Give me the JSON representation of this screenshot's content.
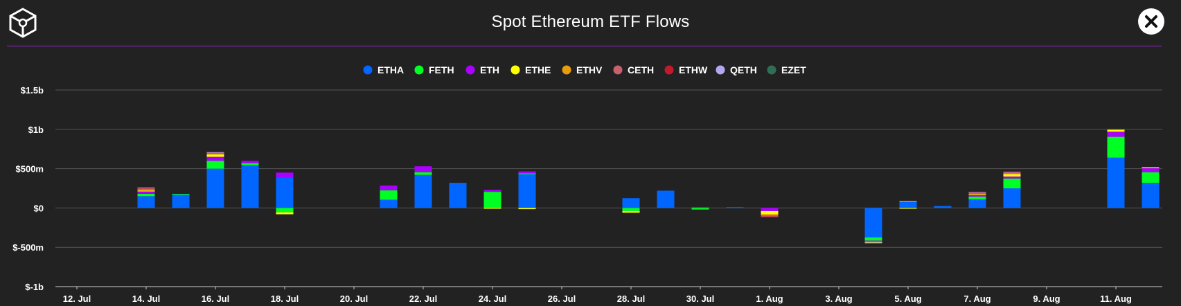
{
  "header": {
    "title": "Spot Ethereum ETF Flows",
    "logo_icon": "cube-logo-icon",
    "close_icon": "close-icon"
  },
  "colors": {
    "background": "#222222",
    "divider": "#9b1fd6",
    "grid": "#555555",
    "axis": "#cccccc"
  },
  "chart_data": {
    "type": "bar",
    "stacked": true,
    "title": "Spot Ethereum ETF Flows",
    "xlabel": "",
    "ylabel": "",
    "ylim": [
      -1000000000,
      1500000000
    ],
    "yticks": [
      {
        "value": 1500000000,
        "label": "$1.5b"
      },
      {
        "value": 1000000000,
        "label": "$1b"
      },
      {
        "value": 500000000,
        "label": "$500m"
      },
      {
        "value": 0,
        "label": "$0"
      },
      {
        "value": -500000000,
        "label": "$-500m"
      },
      {
        "value": -1000000000,
        "label": "$-1b"
      }
    ],
    "grid": true,
    "legend_position": "top-center",
    "x_tick_labels": [
      "12. Jul",
      "14. Jul",
      "16. Jul",
      "18. Jul",
      "20. Jul",
      "22. Jul",
      "24. Jul",
      "26. Jul",
      "28. Jul",
      "30. Jul",
      "1. Aug",
      "3. Aug",
      "5. Aug",
      "7. Aug",
      "9. Aug",
      "11. Aug"
    ],
    "categories": [
      "2025-07-14",
      "2025-07-15",
      "2025-07-16",
      "2025-07-17",
      "2025-07-18",
      "2025-07-21",
      "2025-07-22",
      "2025-07-23",
      "2025-07-24",
      "2025-07-25",
      "2025-07-28",
      "2025-07-29",
      "2025-07-30",
      "2025-07-31",
      "2025-08-01",
      "2025-08-04",
      "2025-08-05",
      "2025-08-06",
      "2025-08-07",
      "2025-08-08",
      "2025-08-11",
      "2025-08-12"
    ],
    "series": [
      {
        "name": "ETHA",
        "color": "#0066ff",
        "values": [
          150000000,
          170000000,
          500000000,
          545000000,
          390000000,
          105000000,
          420000000,
          320000000,
          0,
          430000000,
          125000000,
          220000000,
          0,
          10000000,
          0,
          -375000000,
          80000000,
          25000000,
          110000000,
          250000000,
          640000000,
          320000000
        ]
      },
      {
        "name": "FETH",
        "color": "#00ff22",
        "values": [
          30000000,
          10000000,
          100000000,
          25000000,
          -55000000,
          120000000,
          35000000,
          0,
          205000000,
          10000000,
          -40000000,
          0,
          -20000000,
          0,
          0,
          -40000000,
          5000000,
          0,
          35000000,
          125000000,
          265000000,
          135000000
        ]
      },
      {
        "name": "ETH",
        "color": "#aa00ff",
        "values": [
          30000000,
          0,
          50000000,
          30000000,
          60000000,
          60000000,
          75000000,
          0,
          25000000,
          25000000,
          0,
          0,
          0,
          0,
          -40000000,
          -15000000,
          0,
          0,
          20000000,
          25000000,
          65000000,
          50000000
        ]
      },
      {
        "name": "ETHE",
        "color": "#ffff00",
        "values": [
          10000000,
          0,
          30000000,
          0,
          -25000000,
          0,
          0,
          0,
          -10000000,
          -15000000,
          -20000000,
          0,
          0,
          0,
          -40000000,
          -10000000,
          -10000000,
          0,
          10000000,
          30000000,
          20000000,
          10000000
        ]
      },
      {
        "name": "ETHV",
        "color": "#e89b0c",
        "values": [
          10000000,
          0,
          15000000,
          0,
          0,
          0,
          0,
          0,
          0,
          0,
          0,
          0,
          0,
          0,
          -10000000,
          0,
          5000000,
          0,
          5000000,
          10000000,
          10000000,
          5000000
        ]
      },
      {
        "name": "CETH",
        "color": "#c8606e",
        "values": [
          15000000,
          0,
          5000000,
          0,
          0,
          0,
          0,
          0,
          0,
          0,
          0,
          0,
          0,
          0,
          -20000000,
          0,
          0,
          0,
          10000000,
          10000000,
          0,
          0
        ]
      },
      {
        "name": "ETHW",
        "color": "#c21a2c",
        "values": [
          10000000,
          0,
          5000000,
          0,
          0,
          0,
          0,
          0,
          0,
          0,
          0,
          0,
          0,
          0,
          -10000000,
          0,
          0,
          0,
          10000000,
          5000000,
          0,
          0
        ]
      },
      {
        "name": "QETH",
        "color": "#b5a6f2",
        "values": [
          5000000,
          0,
          5000000,
          0,
          0,
          0,
          0,
          0,
          0,
          0,
          0,
          0,
          0,
          0,
          0,
          -5000000,
          0,
          0,
          5000000,
          5000000,
          0,
          0
        ]
      },
      {
        "name": "EZET",
        "color": "#2f6e55",
        "values": [
          0,
          0,
          0,
          0,
          0,
          0,
          0,
          0,
          0,
          0,
          0,
          0,
          10000000,
          0,
          0,
          0,
          0,
          0,
          0,
          0,
          0,
          0
        ]
      }
    ]
  }
}
